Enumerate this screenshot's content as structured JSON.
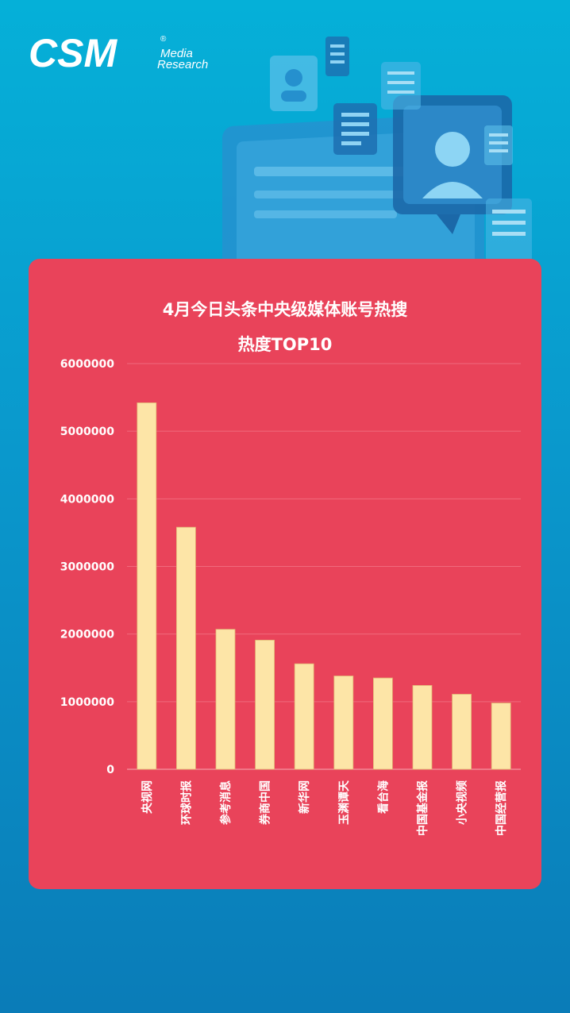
{
  "brand": {
    "logo_main": "CSM",
    "logo_sub_1": "Media",
    "logo_sub_2": "Research",
    "registered": "®"
  },
  "chart_data": {
    "type": "bar",
    "title_line1": "4月今日头条中央级媒体账号热搜",
    "title_line2": "热度TOP10",
    "categories": [
      "央视网",
      "环球时报",
      "参考消息",
      "券商中国",
      "新华网",
      "玉渊谭天",
      "看台海",
      "中国基金报",
      "小央视频",
      "中国经营报"
    ],
    "values": [
      5420000,
      3580000,
      2070000,
      1910000,
      1560000,
      1380000,
      1350000,
      1240000,
      1110000,
      980000
    ],
    "ylim": [
      0,
      6000000
    ],
    "yticks": [
      "0",
      "1000000",
      "2000000",
      "3000000",
      "4000000",
      "5000000",
      "6000000"
    ],
    "grid": true,
    "colors": {
      "card": "#e9435a",
      "bar": "#fde5a7",
      "text": "#ffffff"
    }
  }
}
